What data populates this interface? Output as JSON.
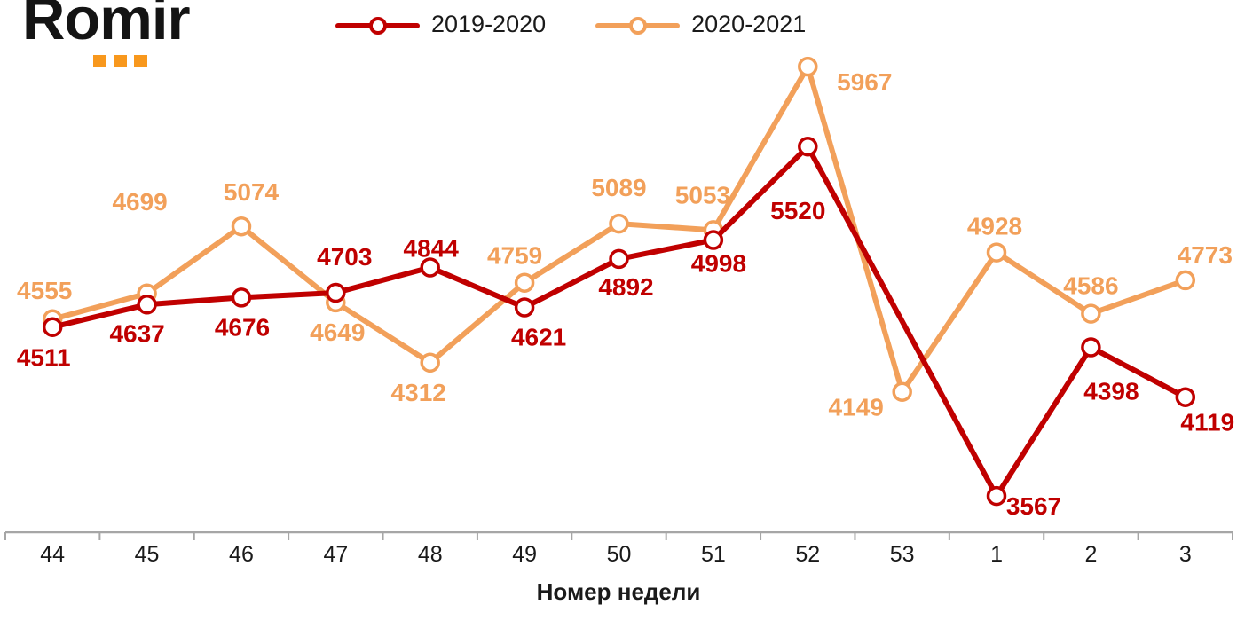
{
  "logo": {
    "text": "Romir"
  },
  "legend": {
    "items": [
      {
        "label": "2019-2020",
        "color": "#C00000"
      },
      {
        "label": "2020-2021",
        "color": "#F2A05A"
      }
    ]
  },
  "chart_data": {
    "type": "line",
    "title": "",
    "xlabel": "Номер недели",
    "ylabel": "",
    "categories": [
      "44",
      "45",
      "46",
      "47",
      "48",
      "49",
      "50",
      "51",
      "52",
      "53",
      "1",
      "2",
      "3"
    ],
    "series": [
      {
        "name": "2019-2020",
        "color": "#C00000",
        "values": [
          4511,
          4637,
          4676,
          4703,
          4844,
          4621,
          4892,
          4998,
          5520,
          null,
          3567,
          4398,
          4119
        ],
        "label_offsets": [
          [
            -10,
            34
          ],
          [
            -11,
            32
          ],
          [
            1,
            33
          ],
          [
            10,
            -41
          ],
          [
            1,
            -22
          ],
          [
            16,
            33
          ],
          [
            8,
            31
          ],
          [
            6,
            26
          ],
          [
            -11,
            72
          ],
          null,
          [
            42,
            11
          ],
          [
            23,
            49
          ],
          [
            25,
            28
          ]
        ]
      },
      {
        "name": "2020-2021",
        "color": "#F2A05A",
        "values": [
          4555,
          4699,
          5074,
          4649,
          4312,
          4759,
          5089,
          5053,
          5967,
          4149,
          4928,
          4586,
          4773
        ],
        "label_offsets": [
          [
            -9,
            -33
          ],
          [
            -8,
            -104
          ],
          [
            11,
            -39
          ],
          [
            2,
            33
          ],
          [
            -13,
            33
          ],
          [
            -11,
            -31
          ],
          [
            0,
            -41
          ],
          [
            -12,
            -40
          ],
          [
            64,
            17
          ],
          [
            -52,
            17
          ],
          [
            -2,
            -30
          ],
          [
            0,
            -32
          ],
          [
            22,
            -29
          ]
        ]
      }
    ],
    "ylim": [
      3364,
      6141
    ],
    "grid": false,
    "legend_position": "top",
    "axis_color": "#A6A6A6",
    "tick_label_color": "#1a1a1a",
    "marker": "circle-open",
    "line_width": 6,
    "data_label_font_size": 28,
    "tick_label_font_size": 25
  }
}
